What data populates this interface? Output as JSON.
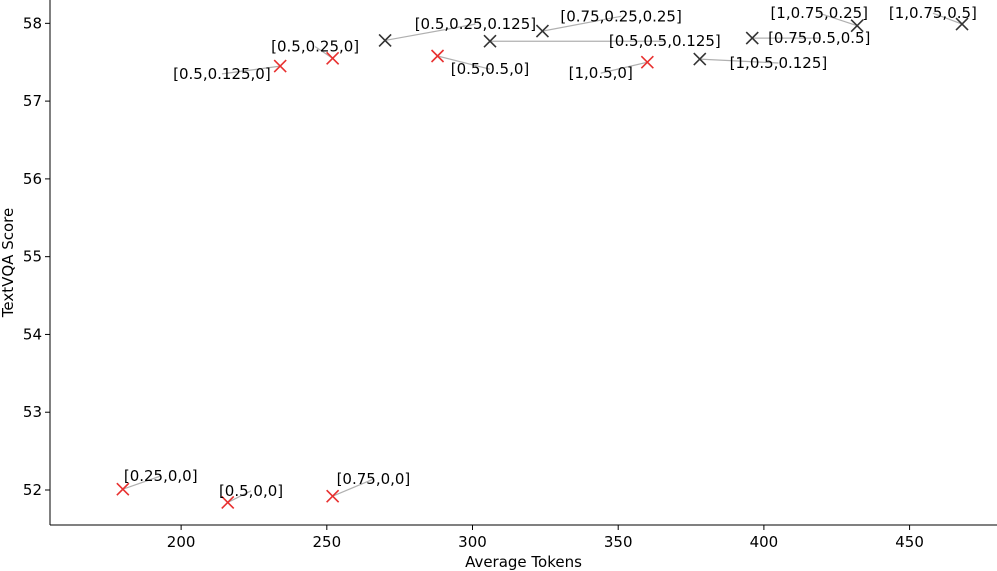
{
  "chart_data": {
    "type": "scatter",
    "title": "",
    "xlabel": "Average Tokens",
    "ylabel": "TextVQA Score",
    "xlim": [
      155,
      480
    ],
    "ylim": [
      51.55,
      58.3
    ],
    "xticks": [
      200,
      250,
      300,
      350,
      400,
      450
    ],
    "yticks": [
      52,
      53,
      54,
      55,
      56,
      57,
      58
    ],
    "grid": false,
    "marker": "x",
    "colors": {
      "red": "#e8302f",
      "dark": "#333333",
      "connector": "#b0b0b0"
    },
    "points": [
      {
        "label": "[0.25,0,0]",
        "x": 180,
        "y": 52.01,
        "color": "red",
        "lx": 193,
        "ly": 52.18
      },
      {
        "label": "[0.5,0,0]",
        "x": 216,
        "y": 51.84,
        "color": "red",
        "lx": 224,
        "ly": 51.99
      },
      {
        "label": "[0.75,0,0]",
        "x": 252,
        "y": 51.92,
        "color": "red",
        "lx": 266,
        "ly": 52.14
      },
      {
        "label": "[0.5,0.125,0]",
        "x": 234,
        "y": 57.45,
        "color": "red",
        "lx": 214,
        "ly": 57.35
      },
      {
        "label": "[0.5,0.25,0]",
        "x": 252,
        "y": 57.55,
        "color": "red",
        "lx": 246,
        "ly": 57.7
      },
      {
        "label": "[0.5,0.5,0]",
        "x": 288,
        "y": 57.58,
        "color": "red",
        "lx": 306,
        "ly": 57.41
      },
      {
        "label": "[1,0.5,0]",
        "x": 360,
        "y": 57.5,
        "color": "red",
        "lx": 344,
        "ly": 57.36
      },
      {
        "label": "[0.5,0.25,0.125]",
        "x": 270,
        "y": 57.78,
        "color": "dark",
        "lx": 301,
        "ly": 57.99
      },
      {
        "label": "[0.5,0.5,0.125]",
        "x": 306,
        "y": 57.77,
        "color": "dark",
        "lx": 366,
        "ly": 57.77
      },
      {
        "label": "[0.75,0.25,0.25]",
        "x": 324,
        "y": 57.9,
        "color": "dark",
        "lx": 351,
        "ly": 58.09
      },
      {
        "label": "[1,0.5,0.125]",
        "x": 378,
        "y": 57.54,
        "color": "dark",
        "lx": 405,
        "ly": 57.49
      },
      {
        "label": "[0.75,0.5,0.5]",
        "x": 396,
        "y": 57.81,
        "color": "dark",
        "lx": 419,
        "ly": 57.81
      },
      {
        "label": "[1,0.75,0.25]",
        "x": 432,
        "y": 57.97,
        "color": "dark",
        "lx": 419,
        "ly": 58.13
      },
      {
        "label": "[1,0.75,0.5]",
        "x": 468,
        "y": 57.99,
        "color": "dark",
        "lx": 458,
        "ly": 58.13
      }
    ]
  }
}
